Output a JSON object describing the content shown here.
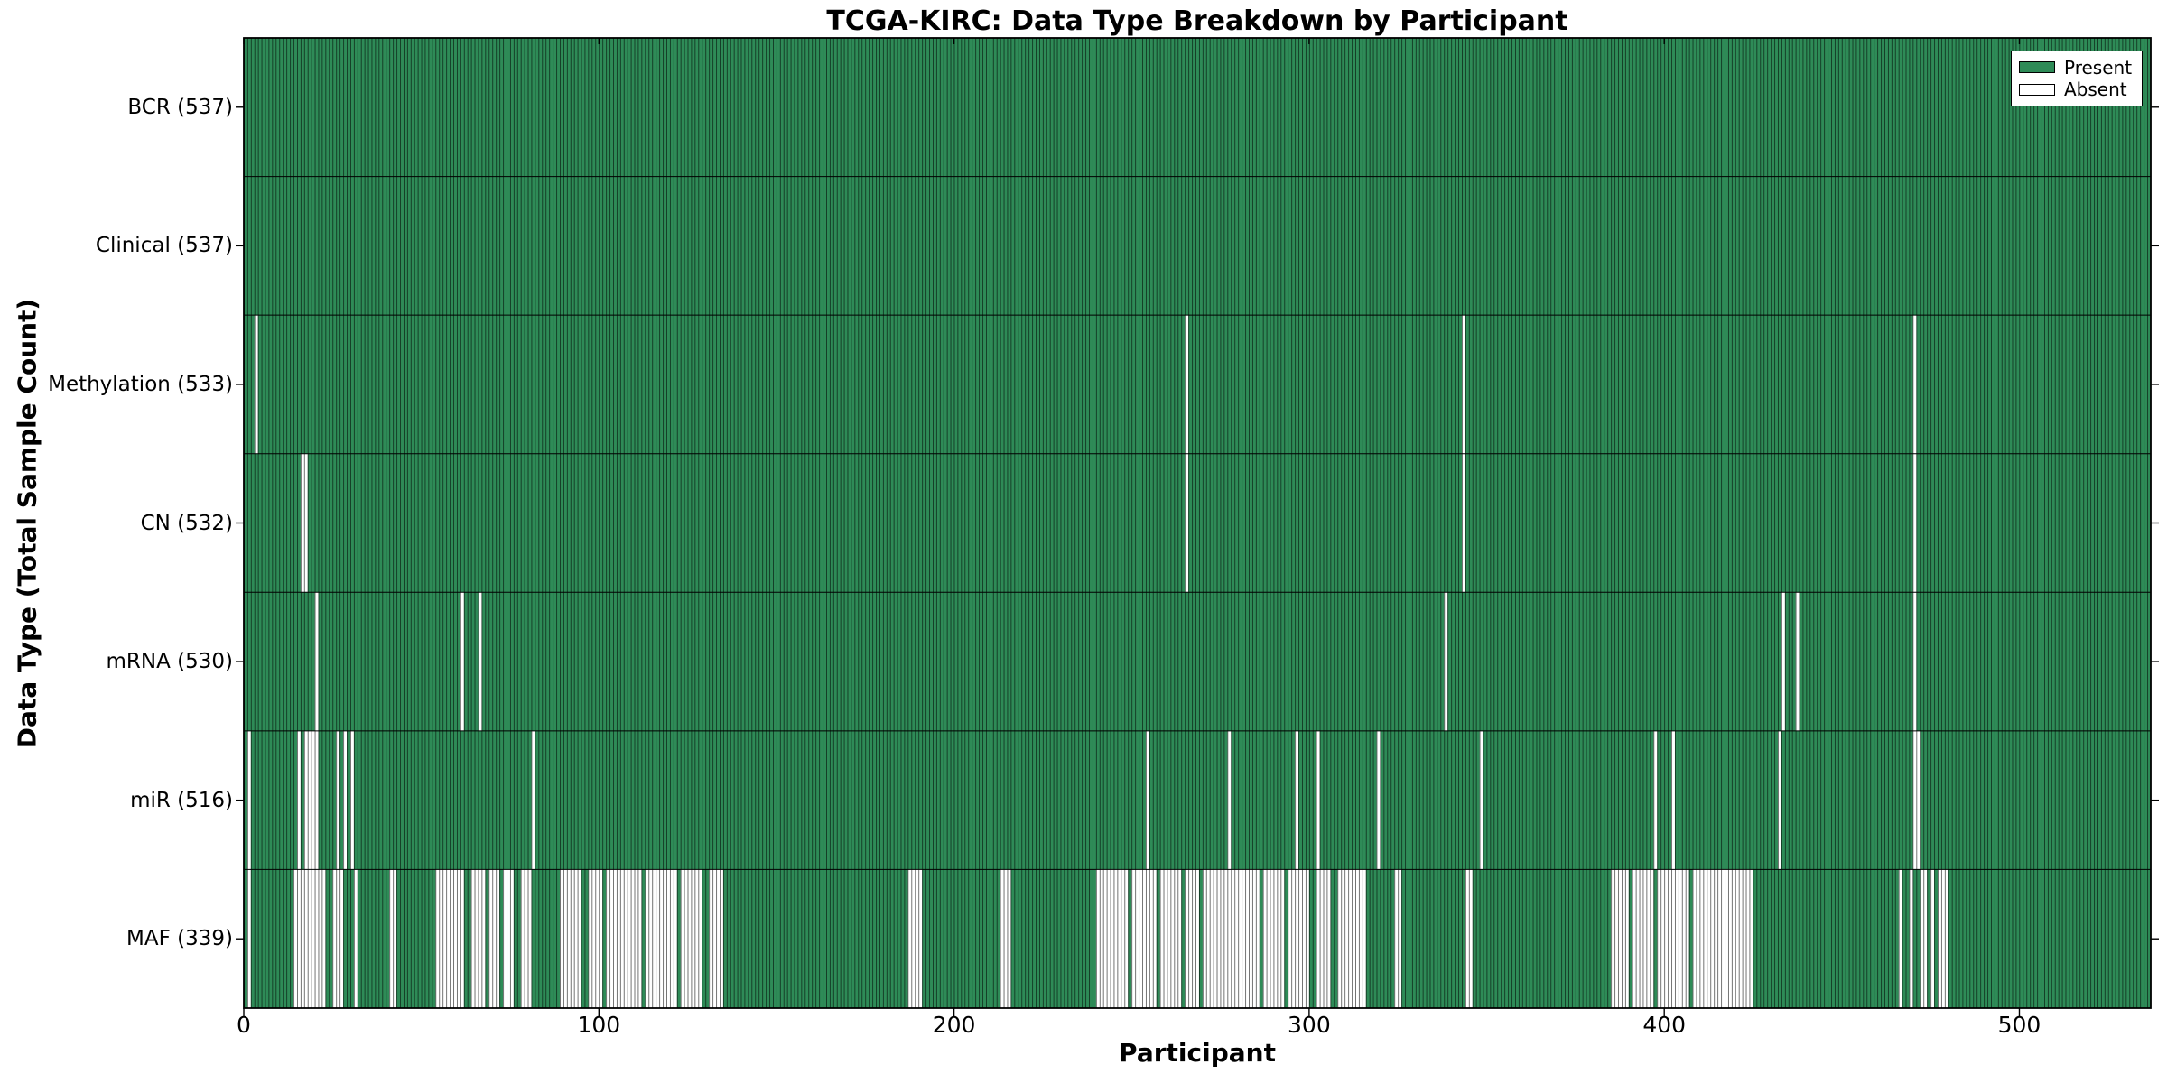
{
  "chart_data": {
    "type": "heatmap",
    "title": "TCGA-KIRC: Data Type Breakdown by Participant",
    "xlabel": "Participant",
    "ylabel": "Data Type (Total Sample Count)",
    "n_participants": 537,
    "x_ticks": [
      0,
      100,
      200,
      300,
      400,
      500
    ],
    "x_range": [
      0,
      537
    ],
    "grid": "row-boundaries-only",
    "legend_position": "upper right",
    "legend": [
      {
        "label": "Present",
        "color": "#2e8b57"
      },
      {
        "label": "Absent",
        "color": "#ffffff"
      }
    ],
    "colors": {
      "present": "#2e8b57",
      "absent": "#ffffff",
      "bar_edge": "#000000",
      "spine": "#000000"
    },
    "rows": [
      {
        "data_type": "BCR",
        "label": "BCR (537)",
        "present_count": 537,
        "absent_count": 0,
        "absent_ranges": []
      },
      {
        "data_type": "Clinical",
        "label": "Clinical (537)",
        "present_count": 537,
        "absent_count": 0,
        "absent_ranges": []
      },
      {
        "data_type": "Methylation",
        "label": "Methylation (533)",
        "present_count": 533,
        "absent_count": 4,
        "absent_ranges": [
          [
            3,
            3
          ],
          [
            265,
            265
          ],
          [
            343,
            343
          ],
          [
            470,
            470
          ]
        ]
      },
      {
        "data_type": "CN",
        "label": "CN (532)",
        "present_count": 532,
        "absent_count": 5,
        "absent_ranges": [
          [
            16,
            17
          ],
          [
            265,
            265
          ],
          [
            343,
            343
          ],
          [
            470,
            470
          ]
        ]
      },
      {
        "data_type": "mRNA",
        "label": "mRNA (530)",
        "present_count": 530,
        "absent_count": 7,
        "absent_ranges": [
          [
            20,
            20
          ],
          [
            61,
            61
          ],
          [
            66,
            66
          ],
          [
            338,
            338
          ],
          [
            433,
            433
          ],
          [
            437,
            437
          ],
          [
            470,
            470
          ]
        ]
      },
      {
        "data_type": "miR",
        "label": "miR (516)",
        "present_count": 516,
        "absent_count": 21,
        "absent_ranges": [
          [
            1,
            1
          ],
          [
            15,
            15
          ],
          [
            17,
            20
          ],
          [
            26,
            26
          ],
          [
            28,
            28
          ],
          [
            30,
            30
          ],
          [
            81,
            81
          ],
          [
            254,
            254
          ],
          [
            277,
            277
          ],
          [
            296,
            296
          ],
          [
            302,
            302
          ],
          [
            319,
            319
          ],
          [
            348,
            348
          ],
          [
            397,
            397
          ],
          [
            402,
            402
          ],
          [
            432,
            432
          ],
          [
            470,
            471
          ]
        ]
      },
      {
        "data_type": "MAF",
        "label": "MAF (339)",
        "present_count": 339,
        "absent_count": 198,
        "absent_ranges": [
          [
            1,
            1
          ],
          [
            14,
            22
          ],
          [
            25,
            27
          ],
          [
            31,
            31
          ],
          [
            41,
            42
          ],
          [
            54,
            61
          ],
          [
            64,
            67
          ],
          [
            69,
            71
          ],
          [
            73,
            75
          ],
          [
            78,
            80
          ],
          [
            89,
            94
          ],
          [
            97,
            100
          ],
          [
            102,
            111
          ],
          [
            113,
            121
          ],
          [
            123,
            128
          ],
          [
            131,
            134
          ],
          [
            187,
            190
          ],
          [
            213,
            215
          ],
          [
            240,
            248
          ],
          [
            250,
            256
          ],
          [
            258,
            263
          ],
          [
            265,
            268
          ],
          [
            270,
            285
          ],
          [
            287,
            292
          ],
          [
            294,
            299
          ],
          [
            302,
            305
          ],
          [
            308,
            315
          ],
          [
            324,
            325
          ],
          [
            344,
            345
          ],
          [
            385,
            389
          ],
          [
            391,
            396
          ],
          [
            398,
            406
          ],
          [
            408,
            424
          ],
          [
            466,
            466
          ],
          [
            469,
            469
          ],
          [
            472,
            473
          ],
          [
            475,
            475
          ],
          [
            477,
            479
          ]
        ]
      }
    ]
  }
}
